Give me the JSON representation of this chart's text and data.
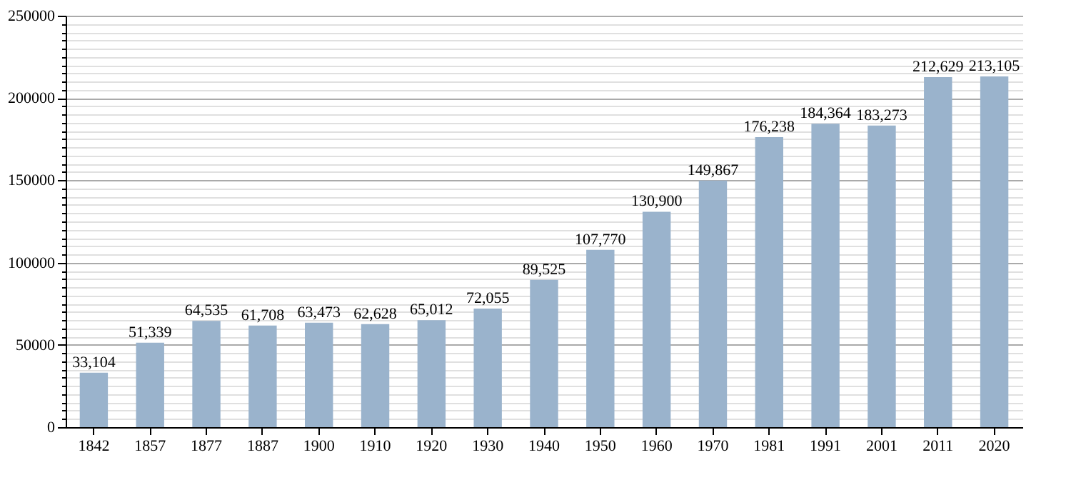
{
  "chart_data": {
    "type": "bar",
    "categories": [
      "1842",
      "1857",
      "1877",
      "1887",
      "1900",
      "1910",
      "1920",
      "1930",
      "1940",
      "1950",
      "1960",
      "1970",
      "1981",
      "1991",
      "2001",
      "2011",
      "2020"
    ],
    "values": [
      33104,
      51339,
      64535,
      61708,
      63473,
      62628,
      65012,
      72055,
      89525,
      107770,
      130900,
      149867,
      176238,
      184364,
      183273,
      212629,
      213105
    ],
    "value_labels": [
      "33,104",
      "51,339",
      "64,535",
      "61,708",
      "63,473",
      "62,628",
      "65,012",
      "72,055",
      "89,525",
      "107,770",
      "130,900",
      "149,867",
      "176,238",
      "184,364",
      "183,273",
      "212,629",
      "213,105"
    ],
    "color": "#9ab3cc",
    "ylim": [
      0,
      250000
    ],
    "yticks": [
      0,
      {
        "value": 5000,
        "label": null
      },
      {
        "value": 10000,
        "label": null
      },
      {
        "value": 15000,
        "label": null
      },
      {
        "value": 20000,
        "label": null
      },
      {
        "value": 25000,
        "label": null
      },
      {
        "value": 30000,
        "label": null
      },
      {
        "value": 35000,
        "label": null
      },
      {
        "value": 40000,
        "label": null
      },
      {
        "value": 45000,
        "label": null
      },
      50000,
      {
        "value": 55000,
        "label": null
      },
      {
        "value": 60000,
        "label": null
      },
      {
        "value": 65000,
        "label": null
      },
      {
        "value": 70000,
        "label": null
      },
      {
        "value": 75000,
        "label": null
      },
      {
        "value": 80000,
        "label": null
      },
      {
        "value": 85000,
        "label": null
      },
      {
        "value": 90000,
        "label": null
      },
      {
        "value": 95000,
        "label": null
      },
      100000,
      {
        "value": 105000,
        "label": null
      },
      {
        "value": 110000,
        "label": null
      },
      {
        "value": 115000,
        "label": null
      },
      {
        "value": 120000,
        "label": null
      },
      {
        "value": 125000,
        "label": null
      },
      {
        "value": 130000,
        "label": null
      },
      {
        "value": 135000,
        "label": null
      },
      {
        "value": 140000,
        "label": null
      },
      {
        "value": 145000,
        "label": null
      },
      150000,
      {
        "value": 155000,
        "label": null
      },
      {
        "value": 160000,
        "label": null
      },
      {
        "value": 165000,
        "label": null
      },
      {
        "value": 170000,
        "label": null
      },
      {
        "value": 175000,
        "label": null
      },
      {
        "value": 180000,
        "label": null
      },
      {
        "value": 185000,
        "label": null
      },
      {
        "value": 190000,
        "label": null
      },
      {
        "value": 195000,
        "label": null
      },
      200000,
      {
        "value": 205000,
        "label": null
      },
      {
        "value": 210000,
        "label": null
      },
      {
        "value": 215000,
        "label": null
      },
      {
        "value": 220000,
        "label": null
      },
      {
        "value": 225000,
        "label": null
      },
      {
        "value": 230000,
        "label": null
      },
      {
        "value": 235000,
        "label": null
      },
      {
        "value": 240000,
        "label": null
      },
      {
        "value": 245000,
        "label": null
      },
      250000
    ],
    "grid": "y"
  }
}
